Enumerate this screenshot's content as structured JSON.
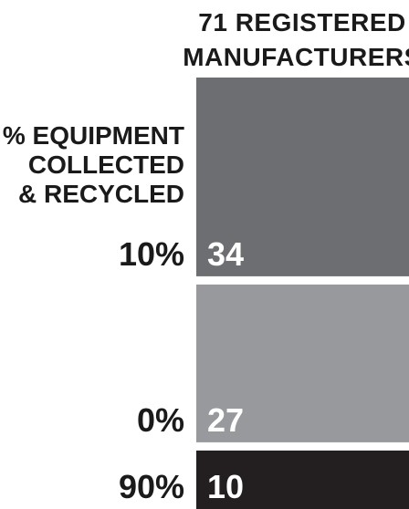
{
  "chart_data": {
    "type": "bar",
    "column_title": [
      "71 REGISTERED",
      "MANUFACTURERS"
    ],
    "row_axis_label": [
      "% EQUIPMENT",
      "COLLECTED",
      "& RECYCLED"
    ],
    "categories": [
      "10%",
      "0%",
      "90%"
    ],
    "values": [
      34,
      27,
      10
    ],
    "total": 71,
    "colors": [
      "#6d6e71",
      "#98999c",
      "#231f20"
    ]
  }
}
